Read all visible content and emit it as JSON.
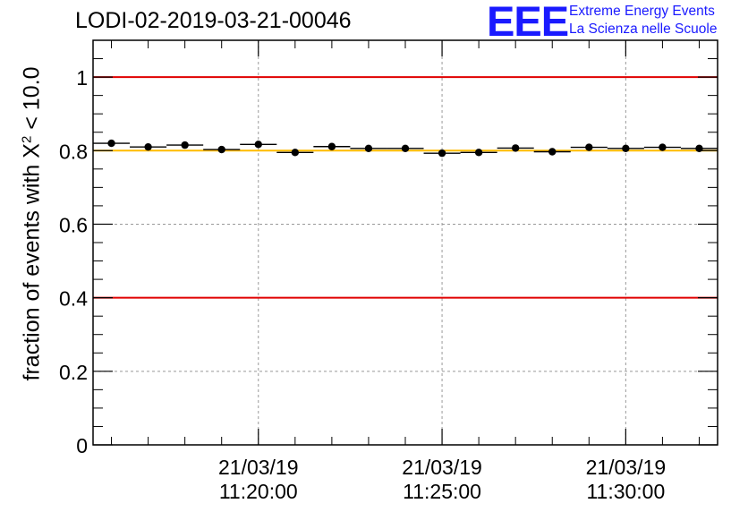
{
  "header": {
    "run_title": "LODI-02-2019-03-21-00046",
    "logo_mark": "EEE",
    "logo_line1": "Extreme Energy Events",
    "logo_line2": "La Scienza nelle Scuole"
  },
  "chart_data": {
    "type": "scatter",
    "title": "LODI-02-2019-03-21-00046",
    "ylabel_prefix": "fraction of events with",
    "ylabel_symbol": "X",
    "ylabel_exponent": "2",
    "ylabel_suffix": "< 10.0",
    "xlabel": "",
    "x_unit": "time (HH:MM:SS on 21/03/19)",
    "xlim": [
      "11:15:30",
      "11:32:30"
    ],
    "ylim": [
      0,
      1.1
    ],
    "y_ticks": [
      "0",
      "0.2",
      "0.4",
      "0.6",
      "0.8",
      "1"
    ],
    "x_ticks": [
      {
        "time": "11:20:00",
        "date": "21/03/19",
        "label": "11:20:00"
      },
      {
        "time": "11:25:00",
        "date": "21/03/19",
        "label": "11:25:00"
      },
      {
        "time": "11:30:00",
        "date": "21/03/19",
        "label": "11:30:00"
      }
    ],
    "bin_width_seconds": 60,
    "points": [
      {
        "time": "11:16:00",
        "value": 0.82
      },
      {
        "time": "11:17:00",
        "value": 0.81
      },
      {
        "time": "11:18:00",
        "value": 0.815
      },
      {
        "time": "11:19:00",
        "value": 0.803
      },
      {
        "time": "11:20:00",
        "value": 0.817
      },
      {
        "time": "11:21:00",
        "value": 0.795
      },
      {
        "time": "11:22:00",
        "value": 0.811
      },
      {
        "time": "11:23:00",
        "value": 0.806
      },
      {
        "time": "11:24:00",
        "value": 0.806
      },
      {
        "time": "11:25:00",
        "value": 0.793
      },
      {
        "time": "11:26:00",
        "value": 0.795
      },
      {
        "time": "11:27:00",
        "value": 0.807
      },
      {
        "time": "11:28:00",
        "value": 0.797
      },
      {
        "time": "11:29:00",
        "value": 0.809
      },
      {
        "time": "11:30:00",
        "value": 0.806
      },
      {
        "time": "11:31:00",
        "value": 0.809
      },
      {
        "time": "11:32:00",
        "value": 0.806
      }
    ],
    "reference_lines": [
      {
        "value": 1.0,
        "color": "#e00000"
      },
      {
        "value": 0.4,
        "color": "#e00000"
      },
      {
        "value": 0.8,
        "color": "#ffbb00"
      }
    ],
    "grid": true,
    "legend": "none"
  }
}
